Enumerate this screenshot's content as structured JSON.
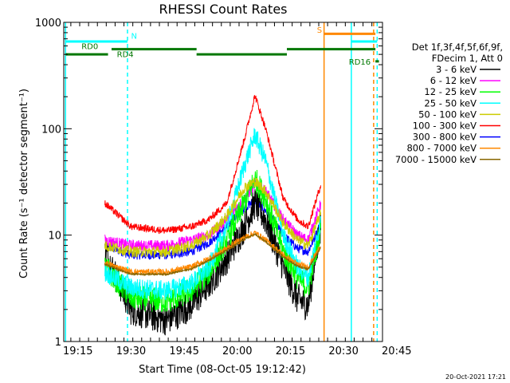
{
  "chart_data": {
    "type": "line",
    "title": "RHESSI Count Rates",
    "xlabel": "Start Time (08-Oct-05 19:12:42)",
    "ylabel": "Count Rate (s⁻¹ detector segment⁻¹)",
    "ylog": true,
    "ylim": [
      1,
      1000
    ],
    "xlim_minutes_after_19_00": [
      11,
      51
    ],
    "x_ticks": [
      "19:15",
      "19:30",
      "19:45",
      "20:00",
      "20:15",
      "20:30",
      "20:45"
    ],
    "y_ticks": [
      "1",
      "10",
      "100",
      "1000"
    ],
    "legend_header": [
      "Det 1f,3f,4f,5f,6f,9f,",
      "FDecim 1, Att 0"
    ],
    "legend_position": "right",
    "timestamp": "20-Oct-2021 17:21",
    "series": [
      {
        "name": "3 - 6 keV",
        "color": "#000000",
        "x": [
          22.6,
          30,
          40,
          47,
          52,
          57,
          62,
          65,
          68,
          73,
          77,
          80,
          83.6
        ],
        "y": [
          7,
          2,
          1.6,
          2.2,
          3.5,
          6,
          12,
          20,
          14,
          5,
          2.5,
          2.2,
          13
        ]
      },
      {
        "name": "6 - 12 keV",
        "color": "#ff00ff",
        "x": [
          22.6,
          30,
          40,
          47,
          52,
          57,
          62,
          65,
          68,
          73,
          77,
          80,
          83.6
        ],
        "y": [
          9,
          8,
          8,
          9,
          10,
          14,
          22,
          30,
          26,
          14,
          10,
          9,
          20
        ]
      },
      {
        "name": "12 - 25 keV",
        "color": "#00ff00",
        "x": [
          22.6,
          30,
          40,
          47,
          52,
          57,
          62,
          65,
          68,
          73,
          77,
          80,
          83.6
        ],
        "y": [
          5,
          2.6,
          2.4,
          3,
          4.5,
          9,
          20,
          34,
          22,
          7,
          4,
          3.2,
          12
        ]
      },
      {
        "name": "25 - 50 keV",
        "color": "#00ffff",
        "x": [
          22.6,
          30,
          40,
          47,
          52,
          57,
          62,
          65,
          68,
          73,
          77,
          80,
          83.6
        ],
        "y": [
          4.5,
          3.2,
          3,
          3.5,
          5,
          12,
          45,
          88,
          50,
          10,
          5,
          4,
          14
        ]
      },
      {
        "name": "50 - 100 keV",
        "color": "#cccc00",
        "x": [
          22.6,
          30,
          40,
          47,
          52,
          57,
          62,
          65,
          68,
          73,
          77,
          80,
          83.6
        ],
        "y": [
          8,
          7,
          7,
          8,
          10,
          15,
          28,
          32,
          26,
          13,
          9,
          8,
          16
        ]
      },
      {
        "name": "100 - 300 keV",
        "color": "#ff0000",
        "x": [
          22.6,
          30,
          40,
          47,
          52,
          57,
          62,
          65,
          68,
          73,
          77,
          80,
          83.6
        ],
        "y": [
          20,
          12,
          11,
          12,
          14,
          20,
          80,
          205,
          100,
          22,
          14,
          12,
          30
        ]
      },
      {
        "name": "300 - 800 keV",
        "color": "#0000ff",
        "x": [
          22.6,
          30,
          40,
          47,
          52,
          57,
          62,
          65,
          68,
          73,
          77,
          80,
          83.6
        ],
        "y": [
          8,
          6.5,
          6.5,
          7,
          8.5,
          12,
          18,
          21,
          17,
          10,
          7.5,
          7,
          13
        ]
      },
      {
        "name": "800 - 7000 keV",
        "color": "#ff8800",
        "x": [
          22.6,
          30,
          40,
          47,
          52,
          57,
          62,
          65,
          68,
          73,
          77,
          80,
          83.6
        ],
        "y": [
          5.5,
          4.5,
          4.5,
          5,
          6,
          7.5,
          9.5,
          10.5,
          9,
          6.5,
          5.3,
          5,
          8
        ]
      },
      {
        "name": "7000 - 15000 keV",
        "color": "#886600",
        "x": [
          22.6,
          30,
          40,
          47,
          52,
          57,
          62,
          65,
          68,
          73,
          77,
          80,
          83.6
        ],
        "y": [
          5.3,
          4.3,
          4.3,
          4.8,
          5.8,
          7.2,
          9.2,
          10.2,
          8.7,
          6.3,
          5.1,
          4.8,
          7.7
        ]
      }
    ],
    "vertical_lines": [
      {
        "x": 11.5,
        "color": "#00ffff",
        "style": "solid"
      },
      {
        "x": 29.0,
        "color": "#00ffff",
        "style": "dashed"
      },
      {
        "x": 84.5,
        "color": "#ff8800",
        "style": "solid"
      },
      {
        "x": 92.2,
        "color": "#00ffff",
        "style": "solid"
      },
      {
        "x": 98.5,
        "color": "#ff8800",
        "style": "dashed"
      },
      {
        "x": 99.5,
        "color": "#00ffff",
        "style": "dashed"
      }
    ],
    "flag_bars": [
      {
        "x": [
          11.5,
          29
        ],
        "y": 660,
        "color": "#00ffff"
      },
      {
        "x": [
          92.2,
          99.5
        ],
        "y": 660,
        "color": "#00ffff"
      },
      {
        "x": [
          84.5,
          99
        ],
        "y": 780,
        "color": "#ff8800"
      },
      {
        "x": [
          11.5,
          23.5
        ],
        "y": 500,
        "color": "#007700"
      },
      {
        "x": [
          24.5,
          48.5
        ],
        "y": 560,
        "color": "#007700"
      },
      {
        "x": [
          48.5,
          74
        ],
        "y": 500,
        "color": "#007700"
      },
      {
        "x": [
          74,
          99
        ],
        "y": 560,
        "color": "#007700"
      },
      {
        "x": [
          99,
          100
        ],
        "y": 430,
        "color": "#007700"
      }
    ],
    "annotations": [
      {
        "text": "RD0",
        "x": 16,
        "y": 560,
        "color": "#007700"
      },
      {
        "text": "RD4",
        "x": 26,
        "y": 470,
        "color": "#007700"
      },
      {
        "text": "N",
        "x": 30,
        "y": 700,
        "color": "#00ffff"
      },
      {
        "text": "S",
        "x": 82.5,
        "y": 800,
        "color": "#ff8800"
      },
      {
        "text": "RD16",
        "x": 91.5,
        "y": 400,
        "color": "#007700"
      }
    ]
  }
}
